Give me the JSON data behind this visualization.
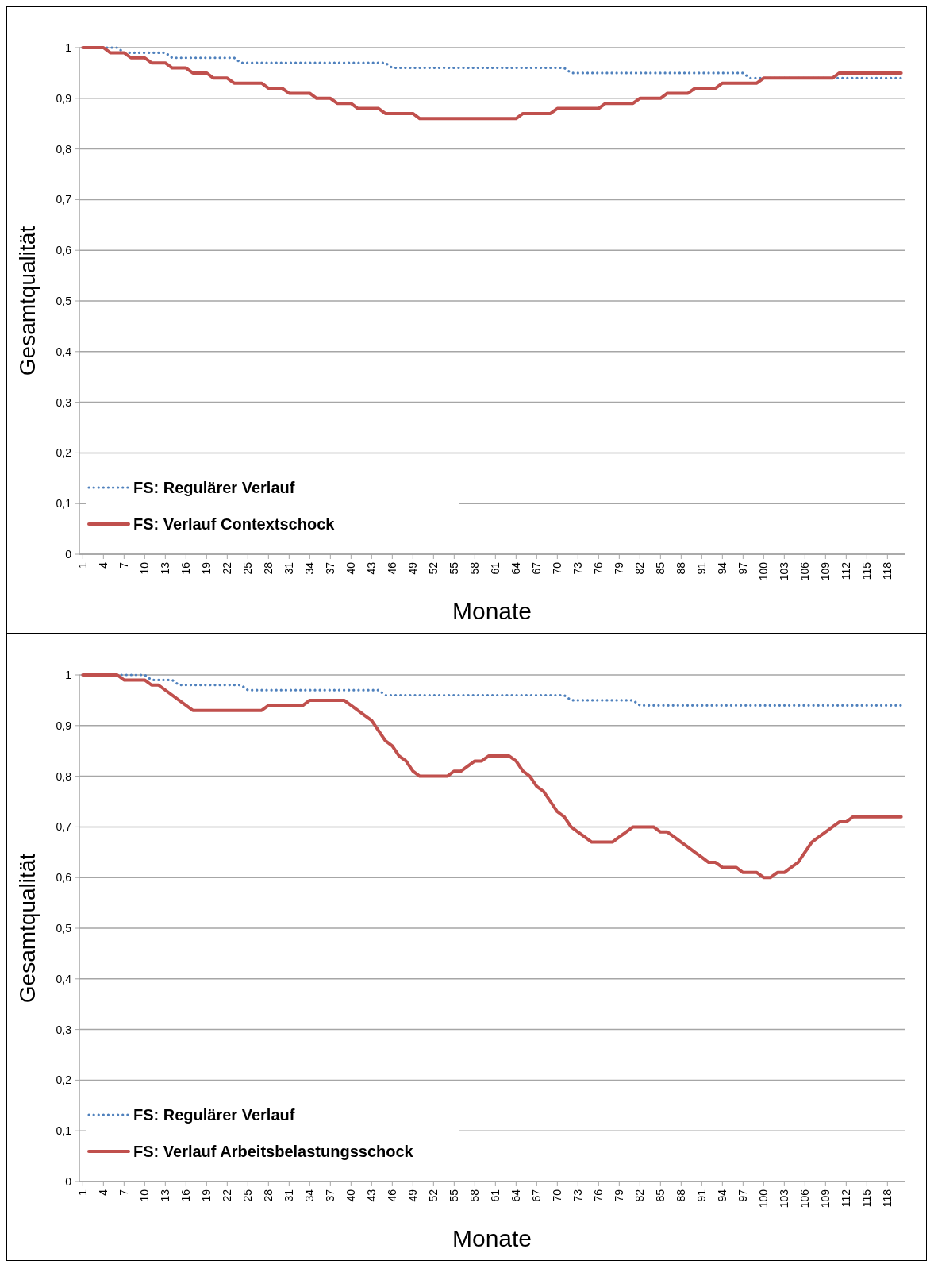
{
  "chart_data": [
    {
      "type": "line",
      "xlabel": "Monate",
      "ylabel": "Gesamtqualität",
      "xlim": [
        0.5,
        120.5
      ],
      "ylim": [
        0,
        1
      ],
      "xticks": [
        1,
        4,
        7,
        10,
        13,
        16,
        19,
        22,
        25,
        28,
        31,
        34,
        37,
        40,
        43,
        46,
        49,
        52,
        55,
        58,
        61,
        64,
        67,
        70,
        73,
        76,
        79,
        82,
        85,
        88,
        91,
        94,
        97,
        100,
        103,
        106,
        109,
        112,
        115,
        118
      ],
      "yticks": [
        {
          "value": 0,
          "label": "0"
        },
        {
          "value": 0.1,
          "label": "0,1"
        },
        {
          "value": 0.2,
          "label": "0,2"
        },
        {
          "value": 0.3,
          "label": "0,3"
        },
        {
          "value": 0.4,
          "label": "0,4"
        },
        {
          "value": 0.5,
          "label": "0,5"
        },
        {
          "value": 0.6,
          "label": "0,6"
        },
        {
          "value": 0.7,
          "label": "0,7"
        },
        {
          "value": 0.8,
          "label": "0,8"
        },
        {
          "value": 0.9,
          "label": "0,9"
        },
        {
          "value": 1,
          "label": "1"
        }
      ],
      "grid": "y",
      "legend": "bottom left",
      "series": [
        {
          "name": "FS: Regulärer Verlauf",
          "color": "#4f81bd",
          "line_style": "dotted",
          "x": [
            1,
            6,
            7,
            13,
            14,
            23,
            24,
            45,
            46,
            71,
            72,
            97,
            98,
            120
          ],
          "values": [
            1,
            1,
            0.99,
            0.99,
            0.98,
            0.98,
            0.97,
            0.97,
            0.96,
            0.96,
            0.95,
            0.95,
            0.94,
            0.94
          ]
        },
        {
          "name": "FS: Verlauf Contextschock",
          "color": "#c0504d",
          "line_style": "solid",
          "x": [
            1,
            4,
            5,
            7,
            8,
            10,
            11,
            13,
            14,
            16,
            17,
            19,
            20,
            22,
            23,
            27,
            28,
            30,
            31,
            34,
            35,
            37,
            38,
            40,
            41,
            44,
            45,
            49,
            50,
            64,
            65,
            69,
            70,
            76,
            77,
            81,
            82,
            85,
            86,
            89,
            90,
            93,
            94,
            99,
            100,
            110,
            111,
            120
          ],
          "values": [
            1,
            1,
            0.99,
            0.99,
            0.98,
            0.98,
            0.97,
            0.97,
            0.96,
            0.96,
            0.95,
            0.95,
            0.94,
            0.94,
            0.93,
            0.93,
            0.92,
            0.92,
            0.91,
            0.91,
            0.9,
            0.9,
            0.89,
            0.89,
            0.88,
            0.88,
            0.87,
            0.87,
            0.86,
            0.86,
            0.87,
            0.87,
            0.88,
            0.88,
            0.89,
            0.89,
            0.9,
            0.9,
            0.91,
            0.91,
            0.92,
            0.92,
            0.93,
            0.93,
            0.94,
            0.94,
            0.95,
            0.95
          ]
        }
      ]
    },
    {
      "type": "line",
      "xlabel": "Monate",
      "ylabel": "Gesamtqualität",
      "xlim": [
        0.5,
        120.5
      ],
      "ylim": [
        0,
        1
      ],
      "xticks": [
        1,
        4,
        7,
        10,
        13,
        16,
        19,
        22,
        25,
        28,
        31,
        34,
        37,
        40,
        43,
        46,
        49,
        52,
        55,
        58,
        61,
        64,
        67,
        70,
        73,
        76,
        79,
        82,
        85,
        88,
        91,
        94,
        97,
        100,
        103,
        106,
        109,
        112,
        115,
        118
      ],
      "yticks": [
        {
          "value": 0,
          "label": "0"
        },
        {
          "value": 0.1,
          "label": "0,1"
        },
        {
          "value": 0.2,
          "label": "0,2"
        },
        {
          "value": 0.3,
          "label": "0,3"
        },
        {
          "value": 0.4,
          "label": "0,4"
        },
        {
          "value": 0.5,
          "label": "0,5"
        },
        {
          "value": 0.6,
          "label": "0,6"
        },
        {
          "value": 0.7,
          "label": "0,7"
        },
        {
          "value": 0.8,
          "label": "0,8"
        },
        {
          "value": 0.9,
          "label": "0,9"
        },
        {
          "value": 1,
          "label": "1"
        }
      ],
      "grid": "y",
      "legend": "bottom left",
      "series": [
        {
          "name": "FS: Regulärer Verlauf",
          "color": "#4f81bd",
          "line_style": "dotted",
          "x": [
            1,
            10,
            11,
            14,
            15,
            24,
            25,
            44,
            45,
            71,
            72,
            81,
            82,
            120
          ],
          "values": [
            1,
            1,
            0.99,
            0.99,
            0.98,
            0.98,
            0.97,
            0.97,
            0.96,
            0.96,
            0.95,
            0.95,
            0.94,
            0.94
          ]
        },
        {
          "name": "FS: Verlauf Arbeitsbelastungsschock",
          "color": "#c0504d",
          "line_style": "solid",
          "x": [
            1,
            6,
            7,
            10,
            11,
            12,
            17,
            27,
            28,
            33,
            34,
            39,
            41,
            42,
            43,
            44,
            45,
            46,
            47,
            48,
            49,
            50,
            54,
            55,
            56,
            58,
            59,
            60,
            63,
            64,
            65,
            66,
            67,
            68,
            69,
            70,
            71,
            72,
            73,
            74,
            75,
            78,
            79,
            80,
            81,
            84,
            85,
            86,
            87,
            88,
            89,
            90,
            91,
            92,
            93,
            94,
            96,
            97,
            99,
            100,
            101,
            102,
            103,
            104,
            105,
            106,
            107,
            108,
            109,
            110,
            111,
            112,
            113,
            120
          ],
          "values": [
            1,
            1,
            0.99,
            0.99,
            0.98,
            0.98,
            0.93,
            0.93,
            0.94,
            0.94,
            0.95,
            0.95,
            0.93,
            0.92,
            0.91,
            0.89,
            0.87,
            0.86,
            0.84,
            0.83,
            0.81,
            0.8,
            0.8,
            0.81,
            0.81,
            0.83,
            0.83,
            0.84,
            0.84,
            0.83,
            0.81,
            0.8,
            0.78,
            0.77,
            0.75,
            0.73,
            0.72,
            0.7,
            0.69,
            0.68,
            0.67,
            0.67,
            0.68,
            0.69,
            0.7,
            0.7,
            0.69,
            0.69,
            0.68,
            0.67,
            0.66,
            0.65,
            0.64,
            0.63,
            0.63,
            0.62,
            0.62,
            0.61,
            0.61,
            0.6,
            0.6,
            0.61,
            0.61,
            0.62,
            0.63,
            0.65,
            0.67,
            0.68,
            0.69,
            0.7,
            0.71,
            0.71,
            0.72,
            0.72
          ]
        }
      ]
    }
  ]
}
